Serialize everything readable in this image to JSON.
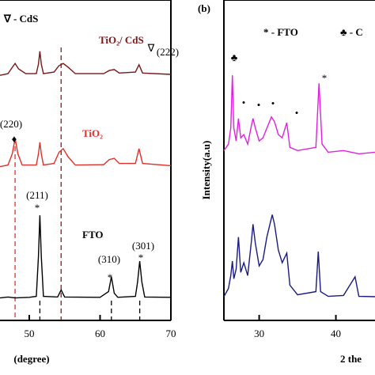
{
  "chart_data": [
    {
      "type": "line",
      "x_label": "(degree)",
      "xlim": [
        45.87,
        70
      ],
      "xticks": [
        50,
        60,
        70
      ],
      "ylim": [
        0,
        100
      ],
      "annotations": [
        "∇ - CdS",
        "∇",
        "(222)",
        "(220)",
        "♦",
        "(211)",
        "*",
        "(310)",
        "*",
        "(301)",
        "*"
      ],
      "dashed_lines": [
        {
          "x": 48,
          "color": "#e0302a"
        },
        {
          "x": 54.5,
          "color": "#8b1a1a"
        },
        {
          "x": 51.5,
          "color": "#000000"
        },
        {
          "x": 61.6,
          "color": "#000000"
        },
        {
          "x": 65.6,
          "color": "#000000"
        }
      ],
      "series": [
        {
          "name": "FTO",
          "color": "#000000",
          "x": [
            45.87,
            47,
            48,
            50,
            51,
            51.3,
            51.5,
            51.7,
            52,
            54,
            54.5,
            55,
            60,
            61.2,
            61.6,
            62,
            62.5,
            65,
            65.3,
            65.6,
            65.9,
            66.3,
            70
          ],
          "values": [
            7,
            7.3,
            7,
            7.2,
            7.5,
            20,
            32.8,
            20,
            7.5,
            7.3,
            9.5,
            7.3,
            7.2,
            9,
            13.6,
            8.5,
            7.2,
            7.5,
            12,
            18.5,
            12,
            7.3,
            7.2
          ]
        },
        {
          "name": "TiO₂",
          "color": "#e0302a",
          "x": [
            45.87,
            47,
            47.6,
            48,
            48.4,
            49,
            51,
            51.3,
            51.5,
            51.7,
            52,
            53.5,
            54.2,
            54.8,
            55.5,
            56.5,
            60.5,
            61.3,
            62,
            62.7,
            65,
            65.5,
            66,
            70
          ],
          "values": [
            48,
            48.5,
            52,
            56.8,
            52,
            48.5,
            48.5,
            52,
            55.6,
            52,
            48.5,
            49,
            52.5,
            53.6,
            51,
            48.5,
            48.6,
            50.2,
            50.6,
            49,
            49,
            53.6,
            49,
            48.3
          ]
        },
        {
          "name": "TiO₂/ CdS",
          "color": "#7a1616",
          "x": [
            45.87,
            47,
            47.6,
            48,
            48.5,
            49.5,
            51,
            51.3,
            51.5,
            51.7,
            52,
            53.5,
            54.2,
            54.8,
            55.5,
            56.5,
            60.5,
            61.3,
            62,
            62.7,
            65,
            65.5,
            66,
            70
          ],
          "values": [
            76.5,
            77,
            79,
            80.2,
            78.5,
            77,
            77,
            80,
            84,
            80,
            77,
            77.5,
            79.5,
            80.2,
            79,
            77,
            77,
            78,
            78.3,
            77.2,
            77.5,
            79.8,
            77.2,
            76.8
          ]
        }
      ]
    },
    {
      "type": "line",
      "x_label": "2 the",
      "y_label": "Intensity(a.u)",
      "xlim": [
        25.4,
        45.1
      ],
      "xticks": [
        30,
        40
      ],
      "ylim": [
        0,
        100
      ],
      "annotations": [
        "(b)",
        "* - FTO",
        "♣ - C",
        "♣",
        "•",
        "•",
        "•",
        "•",
        "*"
      ],
      "series": [
        {
          "color": "#e020e0",
          "x": [
            25.4,
            26,
            26.3,
            26.5,
            26.7,
            27,
            27.3,
            27.6,
            28,
            28.5,
            29,
            29.2,
            29.5,
            30,
            30.5,
            31,
            31.6,
            32,
            32.5,
            33,
            33.6,
            34,
            35,
            37.4,
            37.8,
            38.2,
            39,
            41,
            43,
            45.1
          ],
          "values": [
            53,
            55,
            60,
            76.5,
            60,
            56,
            63,
            57,
            58,
            55,
            61,
            63,
            60,
            56,
            57,
            60,
            63.5,
            62,
            58,
            57,
            61.7,
            54,
            53,
            54,
            74,
            55,
            52.5,
            53,
            52,
            52.5
          ]
        },
        {
          "color": "#1a1a80",
          "x": [
            25.4,
            26,
            26.3,
            26.5,
            26.7,
            27,
            27.3,
            27.6,
            28,
            28.5,
            29,
            29.2,
            29.5,
            30,
            30.5,
            31,
            31.7,
            32,
            32.5,
            33,
            33.6,
            34,
            35,
            37.4,
            37.7,
            38,
            39,
            41,
            42.5,
            43,
            45.1
          ],
          "values": [
            7.4,
            10,
            14,
            18.5,
            13,
            16,
            26,
            15,
            18,
            14,
            25,
            30,
            24,
            17,
            19,
            26,
            33,
            30,
            22,
            18,
            21,
            11,
            8,
            9,
            21.5,
            9,
            7.5,
            7.8,
            13.6,
            7.5,
            7.4
          ]
        }
      ]
    }
  ]
}
